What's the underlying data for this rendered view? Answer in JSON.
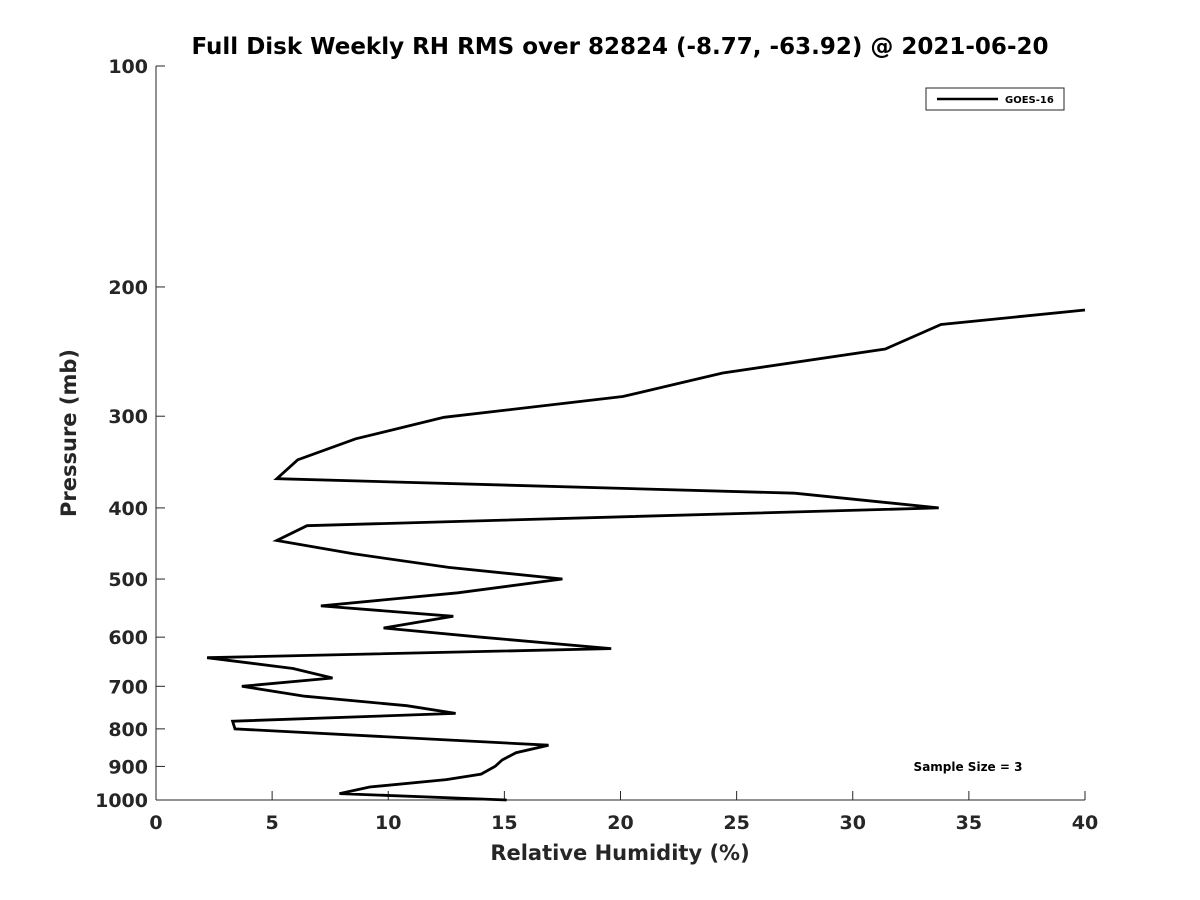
{
  "chart_data": {
    "type": "line",
    "title": "Full Disk Weekly RH RMS over 82824 (-8.77, -63.92) @ 2021-06-20",
    "xlabel": "Relative Humidity (%)",
    "ylabel": "Pressure (mb)",
    "xlim": [
      0,
      40
    ],
    "ylim": [
      100,
      1000
    ],
    "y_scale": "log",
    "y_reversed": true,
    "xticks": [
      "0",
      "5",
      "10",
      "15",
      "20",
      "25",
      "30",
      "35",
      "40"
    ],
    "yticks": [
      "100",
      "200",
      "300",
      "400",
      "500",
      "600",
      "700",
      "800",
      "900",
      "1000"
    ],
    "grid": false,
    "legend_position": "top-right",
    "annotation": "Sample Size = 3",
    "series": [
      {
        "name": "GOES-16",
        "color": "#000000",
        "points": [
          {
            "x": 40.0,
            "y": 215
          },
          {
            "x": 33.8,
            "y": 225
          },
          {
            "x": 31.4,
            "y": 243
          },
          {
            "x": 24.4,
            "y": 262
          },
          {
            "x": 20.1,
            "y": 282
          },
          {
            "x": 12.4,
            "y": 301
          },
          {
            "x": 8.6,
            "y": 322
          },
          {
            "x": 6.1,
            "y": 344
          },
          {
            "x": 5.2,
            "y": 365
          },
          {
            "x": 27.5,
            "y": 382
          },
          {
            "x": 33.7,
            "y": 400
          },
          {
            "x": 6.5,
            "y": 423
          },
          {
            "x": 5.2,
            "y": 443
          },
          {
            "x": 8.5,
            "y": 462
          },
          {
            "x": 12.6,
            "y": 482
          },
          {
            "x": 17.5,
            "y": 500
          },
          {
            "x": 13.0,
            "y": 522
          },
          {
            "x": 7.1,
            "y": 544
          },
          {
            "x": 12.8,
            "y": 562
          },
          {
            "x": 9.8,
            "y": 583
          },
          {
            "x": 14.0,
            "y": 600
          },
          {
            "x": 19.6,
            "y": 622
          },
          {
            "x": 2.2,
            "y": 640
          },
          {
            "x": 5.9,
            "y": 662
          },
          {
            "x": 7.6,
            "y": 682
          },
          {
            "x": 3.7,
            "y": 700
          },
          {
            "x": 6.4,
            "y": 722
          },
          {
            "x": 10.8,
            "y": 744
          },
          {
            "x": 12.9,
            "y": 762
          },
          {
            "x": 3.3,
            "y": 781
          },
          {
            "x": 3.4,
            "y": 800
          },
          {
            "x": 16.9,
            "y": 842
          },
          {
            "x": 15.5,
            "y": 862
          },
          {
            "x": 14.9,
            "y": 882
          },
          {
            "x": 14.6,
            "y": 900
          },
          {
            "x": 14.0,
            "y": 922
          },
          {
            "x": 12.5,
            "y": 938
          },
          {
            "x": 9.2,
            "y": 960
          },
          {
            "x": 7.9,
            "y": 980
          },
          {
            "x": 15.1,
            "y": 1000
          }
        ]
      }
    ]
  }
}
